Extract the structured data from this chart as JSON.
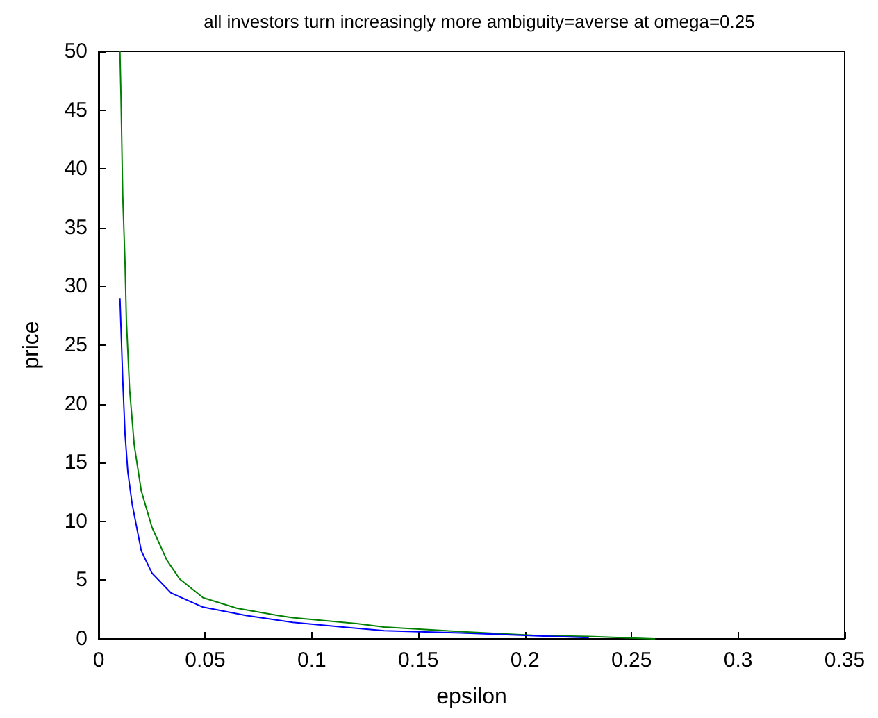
{
  "chart_data": {
    "type": "line",
    "title": "all investors turn increasingly more ambiguity=averse at omega=0.25",
    "xlabel": "epsilon",
    "ylabel": "price",
    "xlim": [
      0,
      0.35
    ],
    "ylim": [
      0,
      50
    ],
    "xticks": [
      0,
      0.05,
      0.1,
      0.15,
      0.2,
      0.25,
      0.3,
      0.35
    ],
    "yticks": [
      0,
      5,
      10,
      15,
      20,
      25,
      30,
      35,
      40,
      45,
      50
    ],
    "grid": false,
    "marker": "none",
    "line_style": "solid",
    "series": [
      {
        "color": "#008000",
        "x": [
          0.01,
          0.0105,
          0.0113,
          0.0124,
          0.013,
          0.0145,
          0.0167,
          0.02,
          0.025,
          0.032,
          0.038,
          0.049,
          0.065,
          0.084,
          0.091,
          0.121,
          0.134,
          0.171,
          0.204,
          0.23,
          0.261
        ],
        "values": [
          50,
          46,
          37.8,
          31.9,
          27.2,
          21.3,
          16.5,
          12.6,
          9.5,
          6.7,
          5.1,
          3.5,
          2.6,
          2,
          1.8,
          1.3,
          1,
          0.6,
          0.3,
          0.2,
          0
        ]
      },
      {
        "color": "#0000ff",
        "x": [
          0.01,
          0.0105,
          0.0113,
          0.0124,
          0.0137,
          0.0157,
          0.02,
          0.025,
          0.034,
          0.049,
          0.069,
          0.091,
          0.121,
          0.134,
          0.17,
          0.2,
          0.23
        ],
        "values": [
          29,
          26.4,
          22.1,
          17.4,
          14.2,
          11.5,
          7.5,
          5.6,
          3.9,
          2.7,
          2,
          1.4,
          0.9,
          0.7,
          0.5,
          0.3,
          0.1
        ]
      }
    ]
  }
}
